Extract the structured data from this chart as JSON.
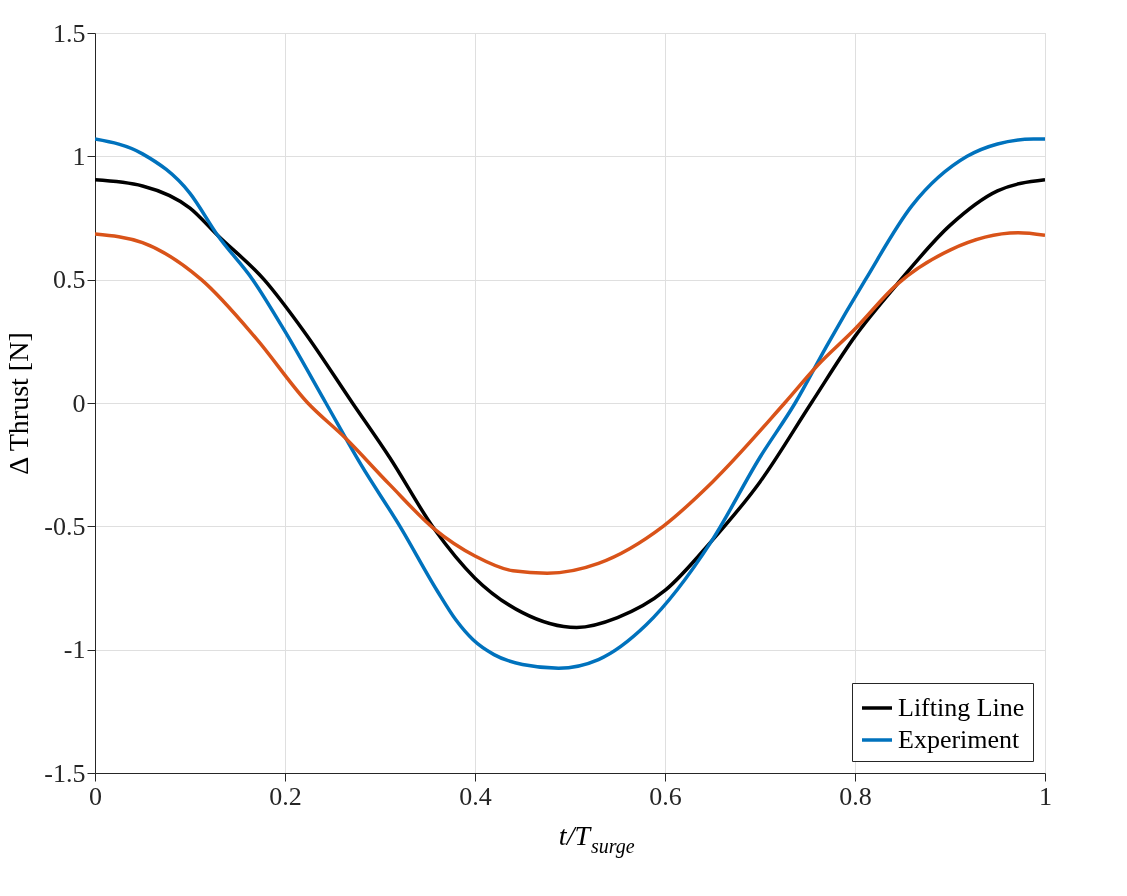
{
  "chart_data": {
    "type": "line",
    "xlabel": "t/T$_{surge}$",
    "ylabel": "Δ Thrust [N]",
    "xlim": [
      0,
      1
    ],
    "ylim": [
      -1.5,
      1.5
    ],
    "xticks": [
      0,
      0.2,
      0.4,
      0.6,
      0.8,
      1
    ],
    "yticks": [
      -1.5,
      -1,
      -0.5,
      0,
      0.5,
      1,
      1.5
    ],
    "grid": true,
    "legend": "bottom right",
    "line_style": "solid",
    "marker": "none",
    "series": [
      {
        "name": "Lifting Line",
        "color": "#000000",
        "x": [
          0,
          0.05,
          0.1,
          0.129,
          0.178,
          0.22,
          0.271,
          0.31,
          0.357,
          0.4,
          0.45,
          0.507,
          0.55,
          0.6,
          0.649,
          0.7,
          0.754,
          0.8,
          0.844,
          0.9,
          0.95,
          1
        ],
        "values": [
          0.905,
          0.88,
          0.79,
          0.68,
          0.5,
          0.29,
          0,
          -0.22,
          -0.51,
          -0.71,
          -0.85,
          -0.91,
          -0.87,
          -0.76,
          -0.56,
          -0.32,
          0,
          0.27,
          0.48,
          0.72,
          0.86,
          0.905
        ]
      },
      {
        "name": "Experiment",
        "color": "#0072bd",
        "x": [
          0,
          0.05,
          0.1,
          0.129,
          0.166,
          0.2,
          0.243,
          0.28,
          0.321,
          0.36,
          0.38,
          0.398,
          0.42,
          0.45,
          0.488,
          0.53,
          0.58,
          0.649,
          0.7,
          0.737,
          0.77,
          0.811,
          0.86,
          0.918,
          0.95,
          0.988,
          1
        ],
        "values": [
          1.07,
          1.01,
          0.85,
          0.68,
          0.5,
          0.29,
          0,
          -0.25,
          -0.5,
          -0.76,
          -0.88,
          -0.96,
          -1.02,
          -1.06,
          -1.075,
          -1.04,
          -0.9,
          -0.56,
          -0.22,
          0,
          0.23,
          0.5,
          0.8,
          1.0,
          1.05,
          1.07,
          1.07
        ]
      },
      {
        "color": "#d95319",
        "x": [
          0,
          0.05,
          0.112,
          0.17,
          0.224,
          0.263,
          0.31,
          0.357,
          0.4,
          0.44,
          0.476,
          0.53,
          0.598,
          0.65,
          0.726,
          0.76,
          0.8,
          0.844,
          0.9,
          0.972,
          1
        ],
        "values": [
          0.685,
          0.65,
          0.5,
          0.26,
          0,
          -0.14,
          -0.33,
          -0.51,
          -0.62,
          -0.68,
          -0.69,
          -0.65,
          -0.5,
          -0.32,
          0,
          0.15,
          0.3,
          0.48,
          0.62,
          0.69,
          0.68
        ]
      }
    ]
  }
}
